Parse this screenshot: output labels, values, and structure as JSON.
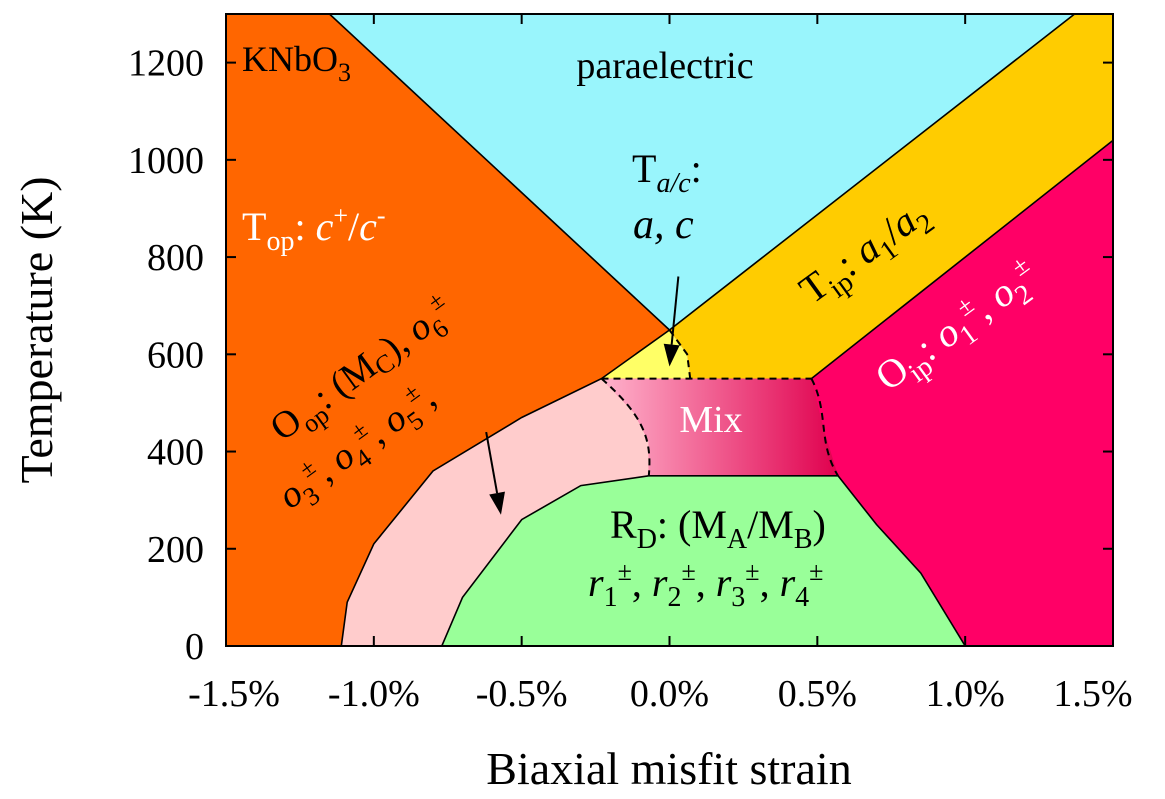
{
  "chart_data": {
    "type": "phase-diagram",
    "title": "",
    "material_label": {
      "main": "KNbO",
      "sub": "3"
    },
    "xlabel": "Biaxial misfit strain",
    "ylabel": "Temperature (K)",
    "xlim": [
      -1.5,
      1.5
    ],
    "ylim": [
      0,
      1300
    ],
    "x_ticks": [
      -1.5,
      -1.0,
      -0.5,
      0.0,
      0.5,
      1.0,
      1.5
    ],
    "x_tick_labels": [
      "-1.5%",
      "-1.0%",
      "-0.5%",
      "0.0%",
      "0.5%",
      "1.0%",
      "1.5%"
    ],
    "y_ticks": [
      0,
      200,
      400,
      600,
      800,
      1000,
      1200
    ],
    "y_tick_labels": [
      "0",
      "200",
      "400",
      "600",
      "800",
      "1000",
      "1200"
    ],
    "colors": {
      "paraelectric": "#99f5fc",
      "T_op": "#ff6600",
      "T_ip": "#ffcc00",
      "O_ip": "#ff0066",
      "T_ac": "#ffff66",
      "O_op": "#ffcccc",
      "R_D": "#99ff99",
      "Mix_left": "#ffb3cc",
      "Mix_right": "#e0004e"
    },
    "regions": [
      {
        "id": "paraelectric",
        "text": "paraelectric"
      },
      {
        "id": "T_op",
        "main": "T",
        "sub": "op",
        "rest": ": ",
        "italic": "c",
        "sup1": "+",
        "slash": "/",
        "italic2": "c",
        "sup2": "-"
      },
      {
        "id": "T_ac",
        "line1_main": "T",
        "line1_sub": "a/c",
        "line1_rest": ":",
        "line2": "a, c"
      },
      {
        "id": "T_ip",
        "main": "T",
        "sub": "ip",
        "rest": ": ",
        "a": "a",
        "s1": "1",
        "slash": "/",
        "s2": "2"
      },
      {
        "id": "O_ip",
        "main": "O",
        "sub": "ip",
        "rest": ": ",
        "o": "o",
        "s1": "1",
        "pm": "±",
        "sep": ", ",
        "s2": "2"
      },
      {
        "id": "O_op",
        "line1_main": "O",
        "line1_sub": "op",
        "line1_rest": ": (M",
        "line1_sub2": "C",
        "line1_close": ")",
        "line2_tail": "o",
        "pm": "±",
        "subs": [
          "3",
          "4",
          "5",
          "6"
        ]
      },
      {
        "id": "Mix",
        "text": "Mix"
      },
      {
        "id": "R_D",
        "line1_main": "R",
        "line1_sub": "D",
        "line1_rest": ": (M",
        "line1_subA": "A",
        "line1_slash": "/M",
        "line1_subB": "B",
        "line1_close": ")",
        "r": "r",
        "pm": "±",
        "subs": [
          "1",
          "2",
          "3",
          "4"
        ]
      }
    ],
    "boundaries": {
      "para_left": [
        [
          -1.15,
          1300
        ],
        [
          0.0,
          650
        ]
      ],
      "para_right": [
        [
          0.0,
          650
        ],
        [
          1.37,
          1300
        ]
      ],
      "Tip_Oip": [
        [
          0.48,
          550
        ],
        [
          1.5,
          1040
        ]
      ],
      "Top_Oop": [
        [
          -1.11,
          0
        ],
        [
          -1.09,
          90
        ],
        [
          -1.0,
          210
        ],
        [
          -0.8,
          360
        ],
        [
          -0.5,
          470
        ],
        [
          -0.23,
          550
        ],
        [
          0.0,
          650
        ]
      ],
      "Tac_bottom": [
        [
          -0.23,
          550
        ],
        [
          0.48,
          550
        ]
      ],
      "Tac_right": [
        [
          0.0,
          650
        ],
        [
          0.06,
          600
        ],
        [
          0.07,
          550
        ]
      ],
      "Mix_bottom": [
        [
          -0.07,
          350
        ],
        [
          0.57,
          350
        ]
      ],
      "RD_left": [
        [
          -0.77,
          0
        ],
        [
          -0.7,
          100
        ],
        [
          -0.5,
          260
        ],
        [
          -0.3,
          330
        ],
        [
          -0.07,
          350
        ]
      ],
      "RD_right": [
        [
          0.57,
          350
        ],
        [
          0.7,
          250
        ],
        [
          0.85,
          150
        ],
        [
          1.0,
          0
        ]
      ]
    },
    "arrows": [
      {
        "from": [
          0.03,
          760
        ],
        "to": [
          0.0,
          575
        ]
      },
      {
        "from": [
          -0.62,
          440
        ],
        "to": [
          -0.57,
          270
        ]
      }
    ]
  }
}
